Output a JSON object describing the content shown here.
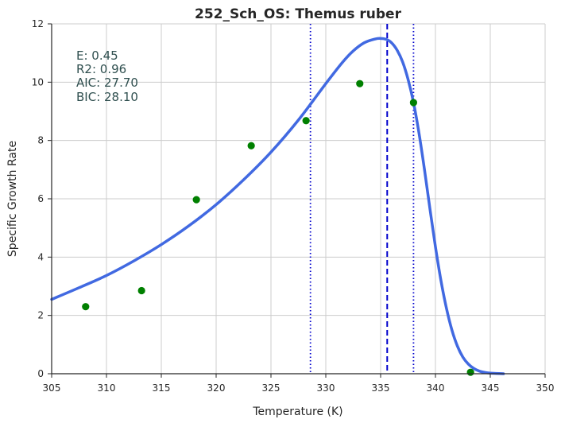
{
  "chart_data": {
    "type": "scatter",
    "title": "252_Sch_OS: Themus ruber",
    "xlabel": "Temperature (K)",
    "ylabel": "Specific Growth Rate",
    "xlim": [
      305,
      350
    ],
    "ylim": [
      0,
      12
    ],
    "x_ticks": [
      "305",
      "310",
      "315",
      "320",
      "325",
      "330",
      "335",
      "340",
      "345",
      "350"
    ],
    "y_ticks": [
      "0",
      "2",
      "4",
      "6",
      "8",
      "10",
      "12"
    ],
    "grid": true,
    "annotations": [
      "E:  0.45",
      "R2:  0.96",
      "AIC: 27.70",
      "BIC: 28.10"
    ],
    "series": [
      {
        "kind": "points",
        "color": "#008000",
        "x": [
          308.1,
          313.2,
          318.2,
          323.2,
          328.2,
          333.1,
          338.0,
          343.2
        ],
        "y": [
          2.3,
          2.85,
          5.97,
          7.82,
          8.68,
          9.95,
          9.3,
          0.05
        ]
      },
      {
        "kind": "fitted-curve",
        "color": "#4169e1",
        "x": [
          305,
          307.5,
          310,
          312.5,
          315,
          317.5,
          320,
          322.5,
          325,
          327.5,
          330,
          331.5,
          332.5,
          333.5,
          334.5,
          335.0,
          335.5,
          336.0,
          336.5,
          337.0,
          337.5,
          338.0,
          338.5,
          339.0,
          339.5,
          340.0,
          340.5,
          341.0,
          341.5,
          342.0,
          342.5,
          343.0,
          343.5,
          344.0,
          344.5,
          345.0,
          345.5,
          346.2
        ],
        "y": [
          2.55,
          2.95,
          3.37,
          3.87,
          4.43,
          5.07,
          5.8,
          6.65,
          7.6,
          8.7,
          9.95,
          10.67,
          11.07,
          11.35,
          11.48,
          11.5,
          11.47,
          11.35,
          11.1,
          10.7,
          10.1,
          9.3,
          8.25,
          7.0,
          5.65,
          4.35,
          3.2,
          2.25,
          1.5,
          0.95,
          0.57,
          0.33,
          0.18,
          0.09,
          0.045,
          0.02,
          0.01,
          0.0
        ]
      }
    ],
    "vertical_lines": [
      {
        "x": 328.6,
        "style": "dotted",
        "color": "#0000cc"
      },
      {
        "x": 335.6,
        "style": "dashed",
        "color": "#0000cc"
      },
      {
        "x": 338.0,
        "style": "dotted",
        "color": "#0000cc"
      }
    ]
  }
}
